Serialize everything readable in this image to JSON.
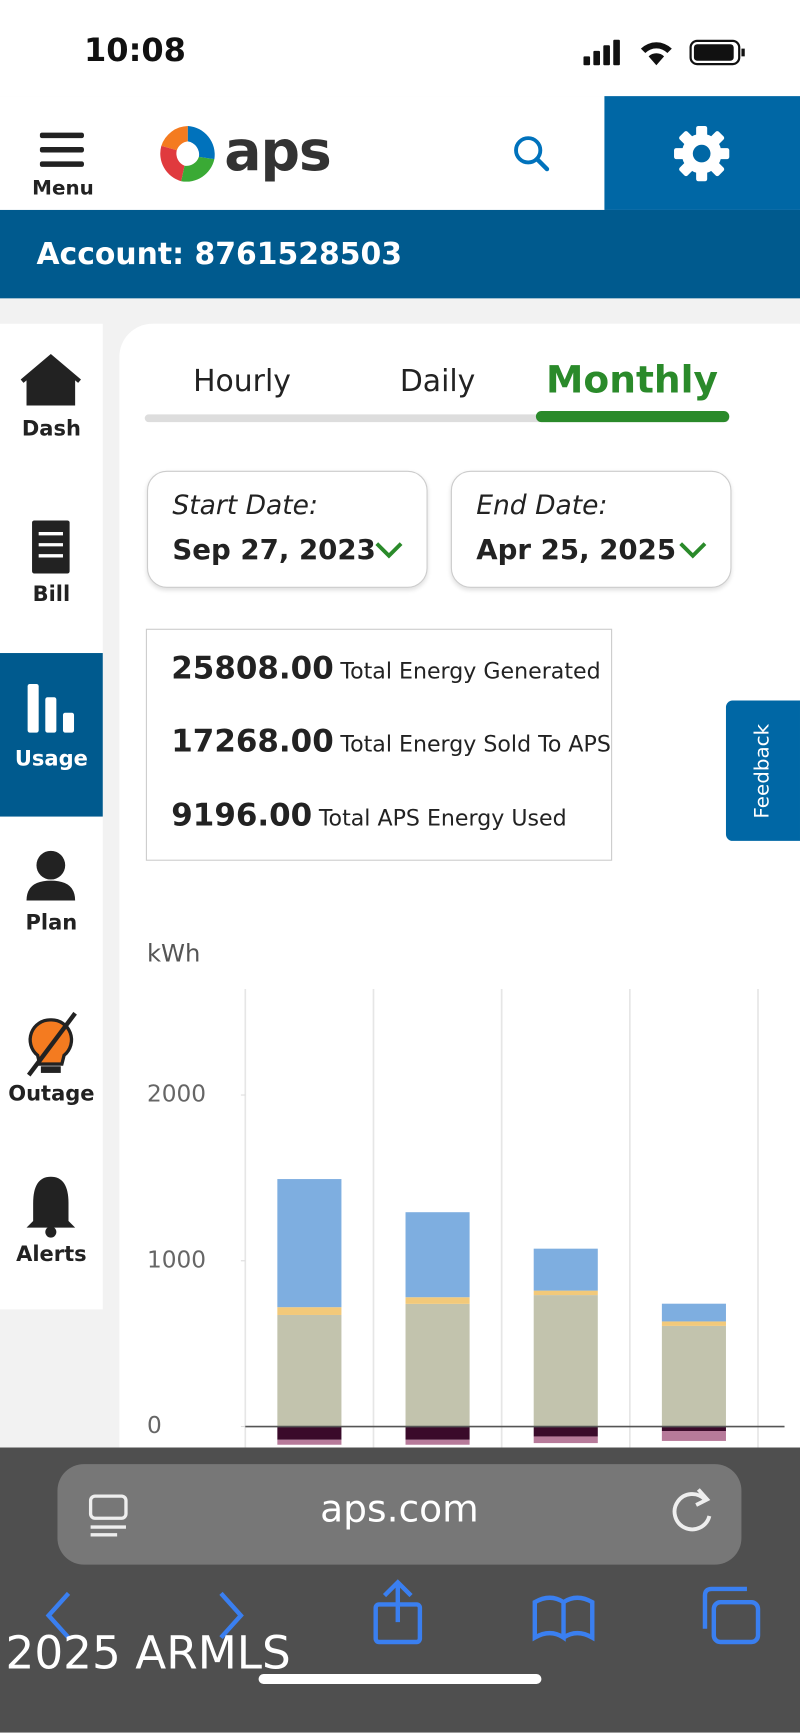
{
  "status_bar": {
    "time": "10:08"
  },
  "header": {
    "menu": "Menu",
    "logo": "aps"
  },
  "account": "Account: 8761528503",
  "sidebar": [
    "Dash",
    "Bill",
    "Usage",
    "Plan",
    "Outage",
    "Alerts"
  ],
  "tabs": [
    "Hourly",
    "Daily",
    "Monthly"
  ],
  "start_date": {
    "label": "Start Date:",
    "value": "Sep 27, 2023"
  },
  "end_date": {
    "label": "End Date:",
    "value": "Apr 25, 2025"
  },
  "totals": [
    {
      "value": "25808.00",
      "label": "Total Energy Generated"
    },
    {
      "value": "17268.00",
      "label": "Total Energy Sold To APS"
    },
    {
      "value": "9196.00",
      "label": "Total APS Energy Used"
    }
  ],
  "feedback": "Feedback",
  "browser": {
    "url": "aps.com"
  },
  "watermark": "2025 ARMLS",
  "chart_data": {
    "type": "bar",
    "stacked": true,
    "y_label": "kWh",
    "categories": [
      null,
      null,
      null,
      null
    ],
    "series": [
      {
        "color": "#c2c3ad",
        "values": [
          673,
          740,
          793,
          607
        ]
      },
      {
        "color": "#f2c97a",
        "values": [
          47,
          40,
          27,
          27
        ]
      },
      {
        "color": "#7eaee0",
        "values": [
          773,
          513,
          253,
          107
        ]
      },
      {
        "color": "#3a0a2a",
        "values": [
          -80,
          -80,
          -60,
          -27
        ]
      },
      {
        "color": "#b77a9a",
        "values": [
          -30,
          -30,
          -40,
          -60
        ]
      }
    ],
    "ylim": [
      -150,
      2640
    ],
    "yticks": [
      0,
      1000,
      2000
    ],
    "grid": true
  }
}
